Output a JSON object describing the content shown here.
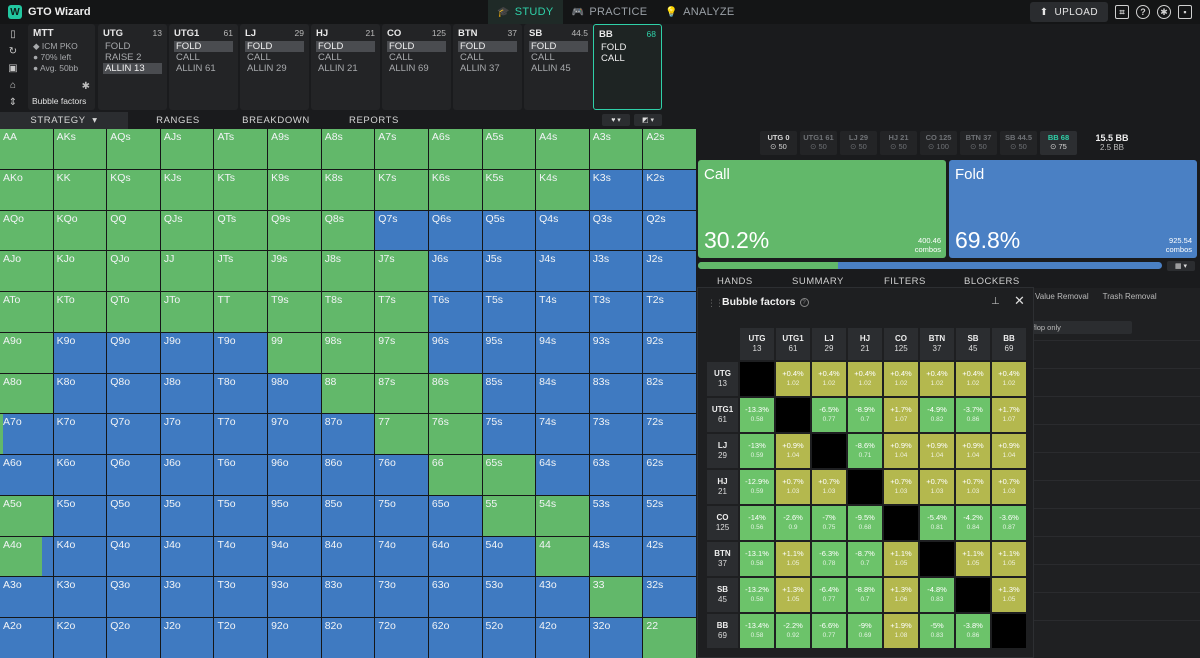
{
  "app": {
    "name": "GTO Wizard"
  },
  "nav": [
    {
      "label": "STUDY",
      "active": true,
      "icon": "graduation-cap-icon"
    },
    {
      "label": "PRACTICE",
      "active": false,
      "icon": "gamepad-icon"
    },
    {
      "label": "ANALYZE",
      "active": false,
      "icon": "lightbulb-icon"
    }
  ],
  "topright": {
    "upload_label": "UPLOAD"
  },
  "game": {
    "title": "MTT",
    "lines": [
      "ICM PKO",
      "70% left",
      "Avg. 50bb"
    ],
    "bubble_label": "Bubble factors"
  },
  "positions": [
    {
      "name": "UTG",
      "stack": "13",
      "actions": [
        "FOLD",
        "RAISE 2",
        "ALLIN 13"
      ],
      "selected": 2,
      "active": false
    },
    {
      "name": "UTG1",
      "stack": "61",
      "actions": [
        "FOLD",
        "CALL",
        "ALLIN 61"
      ],
      "selected": 0,
      "active": false
    },
    {
      "name": "LJ",
      "stack": "29",
      "actions": [
        "FOLD",
        "CALL",
        "ALLIN 29"
      ],
      "selected": 0,
      "active": false
    },
    {
      "name": "HJ",
      "stack": "21",
      "actions": [
        "FOLD",
        "CALL",
        "ALLIN 21"
      ],
      "selected": 0,
      "active": false
    },
    {
      "name": "CO",
      "stack": "125",
      "actions": [
        "FOLD",
        "CALL",
        "ALLIN 69"
      ],
      "selected": 0,
      "active": false
    },
    {
      "name": "BTN",
      "stack": "37",
      "actions": [
        "FOLD",
        "CALL",
        "ALLIN 37"
      ],
      "selected": 0,
      "active": false
    },
    {
      "name": "SB",
      "stack": "44.5",
      "actions": [
        "FOLD",
        "CALL",
        "ALLIN 45"
      ],
      "selected": 0,
      "active": false
    },
    {
      "name": "BB",
      "stack": "68",
      "actions": [
        "FOLD",
        "CALL"
      ],
      "selected": -1,
      "active": true
    }
  ],
  "subtabs": [
    {
      "label": "STRATEGY",
      "active": true
    },
    {
      "label": "RANGES",
      "active": false
    },
    {
      "label": "BREAKDOWN",
      "active": false
    },
    {
      "label": "REPORTS",
      "active": false
    }
  ],
  "colors": {
    "call": "#62b86a",
    "fold": "#4a80c4",
    "bf_green": "#6cc36a",
    "bf_olive": "#b4b84e",
    "accent": "#2fd0a8"
  },
  "grid": {
    "ranks": [
      "A",
      "K",
      "Q",
      "J",
      "T",
      "9",
      "8",
      "7",
      "6",
      "5",
      "4",
      "3",
      "2"
    ],
    "call_frac": [
      [
        1,
        1,
        1,
        1,
        1,
        1,
        1,
        1,
        1,
        1,
        1,
        1,
        1
      ],
      [
        1,
        1,
        1,
        1,
        1,
        1,
        1,
        1,
        1,
        1,
        1,
        0,
        0
      ],
      [
        1,
        1,
        1,
        1,
        1,
        1,
        1,
        0,
        0,
        0,
        0,
        0,
        0
      ],
      [
        1,
        1,
        1,
        1,
        1,
        1,
        1,
        1,
        0,
        0,
        0,
        0,
        0
      ],
      [
        1,
        1,
        1,
        1,
        1,
        1,
        1,
        1,
        0,
        0,
        0,
        0,
        0
      ],
      [
        1,
        0,
        0,
        0,
        0,
        1,
        1,
        1,
        0,
        0,
        0,
        0,
        0
      ],
      [
        1,
        0,
        0,
        0,
        0,
        0,
        1,
        1,
        1,
        0,
        0,
        0,
        0
      ],
      [
        0.06,
        0,
        0,
        0,
        0,
        0,
        0,
        1,
        1,
        0,
        0,
        0,
        0
      ],
      [
        0,
        0,
        0,
        0,
        0,
        0,
        0,
        0,
        1,
        1,
        0,
        0,
        0
      ],
      [
        1,
        0,
        0,
        0,
        0,
        0,
        0,
        0,
        0,
        1,
        1,
        0,
        0
      ],
      [
        0.8,
        0,
        0,
        0,
        0,
        0,
        0,
        0,
        0,
        0,
        1,
        0,
        0
      ],
      [
        0,
        0,
        0,
        0,
        0,
        0,
        0,
        0,
        0,
        0,
        0,
        1,
        0
      ],
      [
        0,
        0,
        0,
        0,
        0,
        0,
        0,
        0,
        0,
        0,
        0,
        0,
        1
      ]
    ]
  },
  "seats": [
    {
      "name": "UTG",
      "stack": "0",
      "bet": "50"
    },
    {
      "name": "UTG1",
      "stack": "61",
      "bet": "50"
    },
    {
      "name": "LJ",
      "stack": "29",
      "bet": "50"
    },
    {
      "name": "HJ",
      "stack": "21",
      "bet": "50"
    },
    {
      "name": "CO",
      "stack": "125",
      "bet": "100"
    },
    {
      "name": "BTN",
      "stack": "37",
      "bet": "50"
    },
    {
      "name": "SB",
      "stack": "44.5",
      "bet": "50"
    },
    {
      "name": "BB",
      "stack": "68",
      "bet": "75"
    }
  ],
  "pot": {
    "total": "15.5 BB",
    "to_call": "2.5 BB"
  },
  "actions": {
    "call": {
      "name": "Call",
      "pct": "30.2%",
      "combos": "400.46",
      "combos_label": "combos"
    },
    "fold": {
      "name": "Fold",
      "pct": "69.8%",
      "combos": "925.54",
      "combos_label": "combos"
    },
    "call_fraction": 0.302
  },
  "lowtabs": [
    {
      "label": "HANDS"
    },
    {
      "label": "SUMMARY"
    },
    {
      "label": "FILTERS"
    },
    {
      "label": "BLOCKERS"
    }
  ],
  "right_columns": [
    "Value Removal",
    "Trash Removal"
  ],
  "flop_badge": "flop only",
  "bubble": {
    "title": "Bubble factors",
    "players": [
      {
        "name": "UTG",
        "stack": "13"
      },
      {
        "name": "UTG1",
        "stack": "61"
      },
      {
        "name": "LJ",
        "stack": "29"
      },
      {
        "name": "HJ",
        "stack": "21"
      },
      {
        "name": "CO",
        "stack": "125"
      },
      {
        "name": "BTN",
        "stack": "37"
      },
      {
        "name": "SB",
        "stack": "45"
      },
      {
        "name": "BB",
        "stack": "69"
      }
    ],
    "matrix": [
      [
        null,
        [
          "+0.4%",
          "1.02"
        ],
        [
          "+0.4%",
          "1.02"
        ],
        [
          "+0.4%",
          "1.02"
        ],
        [
          "+0.4%",
          "1.02"
        ],
        [
          "+0.4%",
          "1.02"
        ],
        [
          "+0.4%",
          "1.02"
        ],
        [
          "+0.4%",
          "1.02"
        ]
      ],
      [
        [
          "-13.3%",
          "0.58"
        ],
        null,
        [
          "-6.5%",
          "0.77"
        ],
        [
          "-8.9%",
          "0.7"
        ],
        [
          "+1.7%",
          "1.07"
        ],
        [
          "-4.9%",
          "0.82"
        ],
        [
          "-3.7%",
          "0.86"
        ],
        [
          "+1.7%",
          "1.07"
        ]
      ],
      [
        [
          "-13%",
          "0.59"
        ],
        [
          "+0.9%",
          "1.04"
        ],
        null,
        [
          "-8.6%",
          "0.71"
        ],
        [
          "+0.9%",
          "1.04"
        ],
        [
          "+0.9%",
          "1.04"
        ],
        [
          "+0.9%",
          "1.04"
        ],
        [
          "+0.9%",
          "1.04"
        ]
      ],
      [
        [
          "-12.9%",
          "0.59"
        ],
        [
          "+0.7%",
          "1.03"
        ],
        [
          "+0.7%",
          "1.03"
        ],
        null,
        [
          "+0.7%",
          "1.03"
        ],
        [
          "+0.7%",
          "1.03"
        ],
        [
          "+0.7%",
          "1.03"
        ],
        [
          "+0.7%",
          "1.03"
        ]
      ],
      [
        [
          "-14%",
          "0.56"
        ],
        [
          "-2.6%",
          "0.9"
        ],
        [
          "-7%",
          "0.75"
        ],
        [
          "-9.5%",
          "0.68"
        ],
        null,
        [
          "-5.4%",
          "0.81"
        ],
        [
          "-4.2%",
          "0.84"
        ],
        [
          "-3.6%",
          "0.87"
        ]
      ],
      [
        [
          "-13.1%",
          "0.58"
        ],
        [
          "+1.1%",
          "1.05"
        ],
        [
          "-6.3%",
          "0.78"
        ],
        [
          "-8.7%",
          "0.7"
        ],
        [
          "+1.1%",
          "1.05"
        ],
        null,
        [
          "+1.1%",
          "1.05"
        ],
        [
          "+1.1%",
          "1.05"
        ]
      ],
      [
        [
          "-13.2%",
          "0.58"
        ],
        [
          "+1.3%",
          "1.05"
        ],
        [
          "-6.4%",
          "0.77"
        ],
        [
          "-8.8%",
          "0.7"
        ],
        [
          "+1.3%",
          "1.06"
        ],
        [
          "-4.8%",
          "0.83"
        ],
        null,
        [
          "+1.3%",
          "1.05"
        ]
      ],
      [
        [
          "-13.4%",
          "0.58"
        ],
        [
          "-2.2%",
          "0.92"
        ],
        [
          "-6.6%",
          "0.77"
        ],
        [
          "-9%",
          "0.69"
        ],
        [
          "+1.9%",
          "1.08"
        ],
        [
          "-5%",
          "0.83"
        ],
        [
          "-3.8%",
          "0.86"
        ],
        null
      ]
    ]
  }
}
